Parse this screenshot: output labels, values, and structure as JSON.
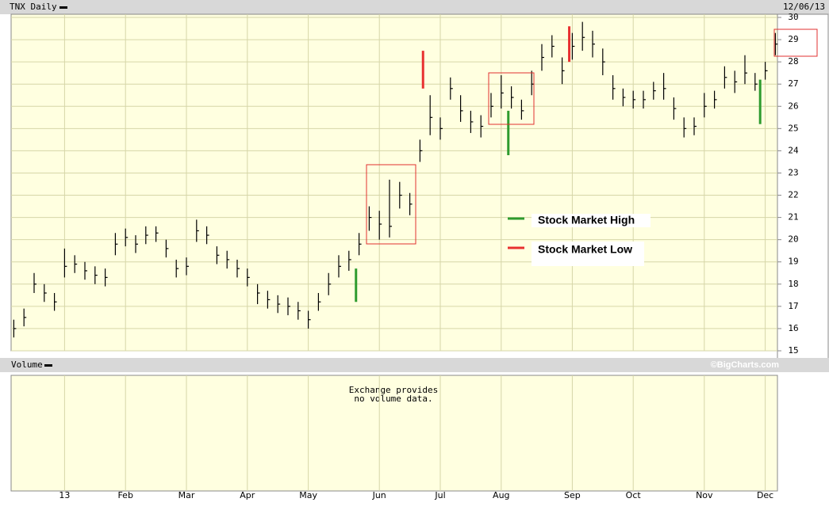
{
  "chart_data": {
    "type": "ohlc",
    "title": "TNX Daily",
    "date": "12/06/13",
    "volume_label": "Volume",
    "credit": "©BigCharts.com",
    "volume_note": [
      "Exchange provides",
      "no volume data."
    ],
    "categories": [
      null,
      null,
      null,
      null,
      null,
      "13",
      null,
      null,
      null,
      null,
      null,
      "Feb",
      null,
      null,
      null,
      null,
      null,
      "Mar",
      null,
      null,
      null,
      null,
      null,
      "Apr",
      null,
      null,
      null,
      null,
      null,
      "May",
      null,
      null,
      null,
      null,
      null,
      null,
      "Jun",
      null,
      null,
      null,
      null,
      null,
      "Jul",
      null,
      null,
      null,
      null,
      null,
      "Aug",
      null,
      null,
      null,
      null,
      null,
      null,
      "Sep",
      null,
      null,
      null,
      null,
      null,
      "Oct",
      null,
      null,
      null,
      null,
      null,
      null,
      "Nov",
      null,
      null,
      null,
      null,
      null,
      "Dec",
      null
    ],
    "high": [
      16.4,
      16.9,
      18.5,
      18.0,
      17.6,
      19.6,
      19.3,
      19.0,
      18.8,
      18.7,
      20.3,
      20.5,
      20.2,
      20.6,
      20.6,
      20.0,
      19.1,
      19.2,
      20.9,
      20.6,
      19.7,
      19.5,
      19.1,
      18.7,
      18.0,
      17.7,
      17.5,
      17.4,
      17.2,
      16.8,
      17.6,
      18.5,
      19.3,
      19.5,
      20.3,
      21.5,
      21.3,
      22.7,
      22.6,
      22.1,
      24.5,
      26.5,
      25.5,
      27.3,
      26.5,
      25.8,
      25.6,
      26.6,
      27.4,
      26.9,
      26.3,
      27.6,
      28.8,
      29.2,
      28.2,
      29.3,
      29.8,
      29.4,
      28.6,
      27.4,
      26.8,
      26.7,
      26.7,
      27.1,
      27.5,
      26.4,
      25.5,
      25.5,
      26.6,
      26.7,
      27.8,
      27.6,
      28.3,
      27.5,
      28.0,
      29.3
    ],
    "low": [
      15.6,
      16.1,
      17.6,
      17.2,
      16.8,
      18.3,
      18.5,
      18.2,
      18.0,
      17.9,
      19.3,
      19.7,
      19.4,
      19.8,
      19.9,
      19.2,
      18.3,
      18.4,
      19.9,
      19.8,
      18.9,
      18.7,
      18.3,
      17.9,
      17.1,
      16.9,
      16.7,
      16.6,
      16.4,
      16.0,
      16.8,
      17.5,
      18.3,
      18.6,
      19.3,
      20.4,
      20.0,
      20.1,
      21.4,
      21.1,
      23.5,
      24.7,
      24.5,
      26.3,
      25.3,
      24.8,
      24.6,
      25.5,
      25.9,
      25.9,
      25.4,
      26.5,
      27.6,
      28.2,
      27.0,
      28.1,
      28.5,
      28.2,
      27.4,
      26.3,
      26.0,
      25.9,
      25.9,
      26.3,
      26.3,
      25.4,
      24.6,
      24.7,
      25.5,
      25.9,
      26.8,
      26.6,
      27.0,
      26.7,
      27.2,
      28.3
    ],
    "close": [
      16.0,
      16.5,
      18.0,
      17.6,
      17.2,
      18.8,
      18.9,
      18.6,
      18.4,
      18.3,
      19.8,
      20.1,
      19.8,
      20.2,
      20.3,
      19.6,
      18.7,
      18.8,
      20.4,
      20.2,
      19.3,
      19.1,
      18.7,
      18.3,
      17.6,
      17.3,
      17.1,
      17.0,
      16.8,
      16.4,
      17.2,
      18.0,
      18.8,
      19.1,
      19.8,
      21.0,
      20.7,
      20.6,
      22.0,
      21.6,
      24.0,
      25.5,
      25.0,
      26.8,
      25.8,
      25.3,
      25.1,
      26.0,
      26.6,
      26.4,
      25.8,
      27.0,
      28.2,
      28.7,
      27.6,
      28.7,
      29.1,
      28.8,
      28.0,
      26.8,
      26.4,
      26.3,
      26.3,
      26.7,
      26.8,
      25.9,
      25.0,
      25.1,
      26.0,
      26.3,
      27.3,
      27.1,
      27.5,
      27.0,
      27.6,
      28.8
    ],
    "color": "#000000",
    "events": [
      {
        "name": "Stock Market High",
        "color": "#2e9b2e",
        "items": [
          {
            "at": 33.7,
            "low": 17.2,
            "high": 18.7
          },
          {
            "at": 48.7,
            "low": 23.8,
            "high": 25.8
          },
          {
            "at": 73.5,
            "low": 25.2,
            "high": 27.2
          }
        ]
      },
      {
        "name": "Stock Market Low",
        "color": "#e83030",
        "items": [
          {
            "at": 40.3,
            "low": 26.8,
            "high": 28.5
          },
          {
            "at": 54.7,
            "low": 28.0,
            "high": 29.6
          }
        ]
      }
    ],
    "ylim": [
      15,
      30
    ],
    "yticks": [
      15,
      16,
      17,
      18,
      19,
      20,
      21,
      22,
      23,
      24,
      25,
      26,
      27,
      28,
      29,
      30
    ],
    "grid": true
  }
}
